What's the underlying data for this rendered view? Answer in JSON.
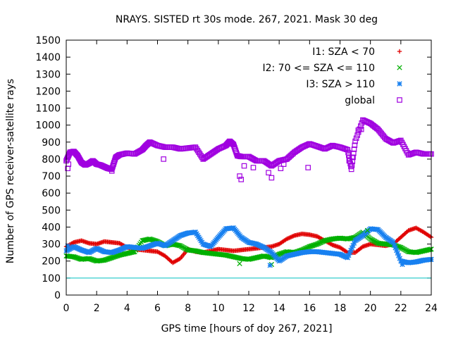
{
  "chart_data": {
    "type": "scatter",
    "title": "NRAYS. SISTED rt 30s mode. 267, 2021. Mask 30 deg",
    "xlabel": "GPS time [hours of doy 267, 2021]",
    "ylabel": "Number of GPS receiver-satellite rays",
    "xlim": [
      0,
      24
    ],
    "ylim": [
      0,
      1500
    ],
    "xticks": [
      0,
      2,
      4,
      6,
      8,
      10,
      12,
      14,
      16,
      18,
      20,
      22,
      24
    ],
    "yticks": [
      0,
      100,
      200,
      300,
      400,
      500,
      600,
      700,
      800,
      900,
      1000,
      1100,
      1200,
      1300,
      1400,
      1500
    ],
    "reference_line": {
      "y": 100,
      "color": "#00c0c0"
    },
    "legend_position": "top-right",
    "series": [
      {
        "name": "I1: SZA < 70",
        "color": "#e00000",
        "marker": "plus",
        "x": [
          0,
          0.5,
          1,
          1.5,
          2,
          2.5,
          3,
          3.5,
          4,
          4.5,
          5,
          5.5,
          6,
          6.5,
          7,
          7.5,
          8,
          8.5,
          9,
          9.5,
          10,
          10.5,
          11,
          11.5,
          12,
          12.5,
          13,
          13.5,
          14,
          14.5,
          15,
          15.5,
          16,
          16.5,
          17,
          17.5,
          18,
          18.5,
          19,
          19.5,
          20,
          20.5,
          21,
          21.5,
          22,
          22.5,
          23,
          23.5,
          24
        ],
        "y": [
          285,
          310,
          320,
          305,
          300,
          315,
          310,
          305,
          280,
          270,
          265,
          260,
          255,
          230,
          190,
          215,
          270,
          255,
          250,
          260,
          270,
          265,
          260,
          265,
          270,
          275,
          280,
          285,
          300,
          330,
          350,
          360,
          355,
          345,
          320,
          295,
          280,
          250,
          250,
          285,
          300,
          295,
          290,
          300,
          340,
          380,
          395,
          370,
          340
        ]
      },
      {
        "name": "I2: 70 <= SZA <= 110",
        "color": "#00b000",
        "marker": "cross",
        "x": [
          0,
          0.5,
          1,
          1.5,
          2,
          2.5,
          3,
          3.5,
          4,
          4.5,
          5,
          5.5,
          6,
          6.5,
          7,
          7.5,
          8,
          8.5,
          9,
          9.5,
          10,
          10.5,
          11,
          11.5,
          12,
          12.5,
          13,
          13.5,
          14,
          14.5,
          15,
          15.5,
          16,
          16.5,
          17,
          17.5,
          18,
          18.5,
          19,
          19.5,
          20,
          20.5,
          21,
          21.5,
          22,
          22.5,
          23,
          23.5,
          24
        ],
        "y": [
          230,
          225,
          210,
          215,
          200,
          205,
          220,
          235,
          245,
          255,
          320,
          330,
          315,
          290,
          300,
          290,
          265,
          260,
          250,
          245,
          240,
          235,
          225,
          215,
          210,
          220,
          230,
          220,
          240,
          255,
          250,
          265,
          285,
          300,
          320,
          330,
          335,
          330,
          340,
          370,
          330,
          305,
          300,
          295,
          280,
          255,
          250,
          260,
          270
        ]
      },
      {
        "name": "I3: SZA > 110",
        "color": "#1880f0",
        "marker": "star",
        "x": [
          0,
          0.5,
          1,
          1.5,
          2,
          2.5,
          3,
          3.5,
          4,
          4.5,
          5,
          5.5,
          6,
          6.5,
          7,
          7.5,
          8,
          8.5,
          9,
          9.5,
          10,
          10.5,
          11,
          11.5,
          12,
          12.5,
          13,
          13.5,
          14,
          14.5,
          15,
          15.5,
          16,
          16.5,
          17,
          17.5,
          18,
          18.5,
          19,
          19.5,
          20,
          20.5,
          21,
          21.5,
          22,
          22.5,
          23,
          23.5,
          24
        ],
        "y": [
          260,
          285,
          265,
          250,
          275,
          255,
          250,
          265,
          285,
          280,
          275,
          290,
          305,
          290,
          320,
          350,
          365,
          370,
          300,
          285,
          340,
          390,
          395,
          340,
          310,
          300,
          280,
          250,
          200,
          230,
          240,
          250,
          255,
          255,
          250,
          245,
          240,
          220,
          320,
          350,
          390,
          385,
          340,
          310,
          200,
          190,
          195,
          205,
          210
        ]
      },
      {
        "name": "global",
        "color": "#a000e0",
        "marker": "square",
        "x": [
          0,
          0.25,
          0.5,
          0.75,
          1,
          1.25,
          1.5,
          1.75,
          2,
          2.25,
          2.5,
          2.75,
          3,
          3.25,
          3.5,
          4,
          4.5,
          5,
          5.25,
          5.5,
          6,
          6.5,
          7,
          7.5,
          8,
          8.5,
          9,
          9.5,
          10,
          10.5,
          10.75,
          11,
          11.25,
          11.5,
          12,
          12.5,
          13,
          13.5,
          14,
          14.5,
          15,
          15.5,
          16,
          16.5,
          17,
          17.5,
          18,
          18.5,
          18.75,
          19,
          19.5,
          20,
          20.5,
          21,
          21.5,
          22,
          22.5,
          23,
          23.5,
          24
        ],
        "y": [
          790,
          840,
          845,
          820,
          780,
          765,
          775,
          790,
          770,
          765,
          755,
          745,
          740,
          810,
          825,
          835,
          830,
          855,
          880,
          900,
          880,
          870,
          870,
          860,
          865,
          870,
          800,
          830,
          860,
          880,
          905,
          885,
          820,
          815,
          815,
          790,
          790,
          760,
          790,
          800,
          840,
          870,
          890,
          875,
          860,
          880,
          870,
          855,
          740,
          905,
          1030,
          1010,
          975,
          920,
          895,
          910,
          825,
          840,
          830,
          830
        ]
      }
    ],
    "outliers": [
      {
        "series": "global",
        "x": [
          0.1,
          0.15,
          3.0,
          6.4,
          11.4,
          11.5,
          11.7,
          12.3,
          13.3,
          13.5,
          14.1,
          14.3,
          15.9,
          18.6,
          18.8,
          19.2,
          19.4
        ],
        "y": [
          745,
          770,
          730,
          800,
          700,
          680,
          760,
          750,
          720,
          690,
          745,
          770,
          750,
          790,
          810,
          970,
          975
        ]
      },
      {
        "series": "I2: 70 <= SZA <= 110",
        "x": [
          11.4,
          13.5,
          19.8
        ],
        "y": [
          185,
          180,
          380
        ]
      },
      {
        "series": "I3: SZA > 110",
        "x": [
          0.1,
          13.4,
          22.1
        ],
        "y": [
          290,
          175,
          180
        ]
      }
    ]
  }
}
